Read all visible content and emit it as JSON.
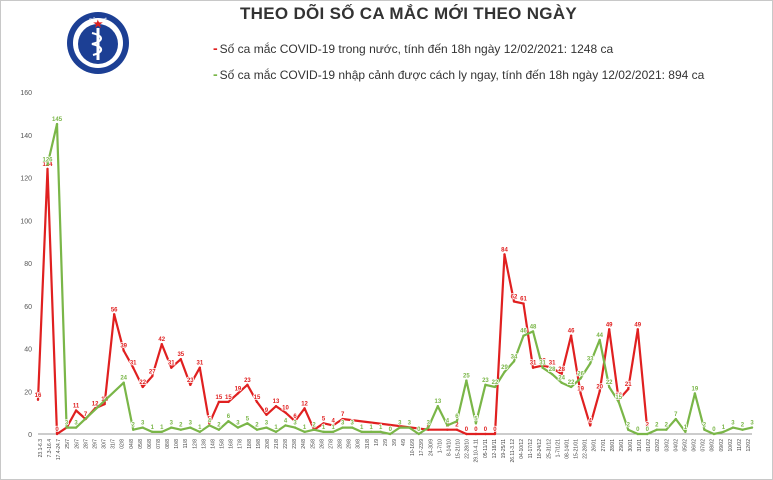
{
  "title": "THEO DÕI SỐ CA MẮC MỚI THEO NGÀY",
  "logo_text": "BỘ Y TẾ",
  "legend": [
    {
      "marker": "-",
      "text": "Số ca mắc COVID-19 trong nước, tính đến 18h ngày 12/02/2021: 1248 ca",
      "color": "#e02020"
    },
    {
      "marker": "-",
      "text": "Số ca mắc COVID-19 nhập cảnh được cách ly ngay, tính đến 18h ngày 12/02/2021: 894 ca",
      "color": "#7ab648"
    }
  ],
  "chart_data": {
    "type": "line",
    "title": "THEO DÕI SỐ CA MẮC MỚI THEO NGÀY",
    "xlabel": "",
    "ylabel": "",
    "ylim": [
      0,
      160
    ],
    "yticks": [
      0,
      20,
      40,
      60,
      80,
      100,
      120,
      140,
      160
    ],
    "grid": false,
    "legend_position": "top",
    "x_tick_labels": [
      "23.1-6.3",
      "7.3-16.4",
      "17.4-24.7",
      "25/7",
      "26/7",
      "28/7",
      "29/7",
      "30/7",
      "31/7",
      "02/8",
      "04/8",
      "05/8",
      "06/8",
      "07/8",
      "08/8",
      "10/8",
      "11/8",
      "12/8",
      "13/8",
      "14/8",
      "15/8",
      "16/8",
      "17/8",
      "18/8",
      "19/8",
      "20/8",
      "21/8",
      "22/8",
      "23/8",
      "24/8",
      "25/8",
      "26/8",
      "27/8",
      "28/8",
      "29/8",
      "30/8",
      "31/8",
      "1/9",
      "2/9",
      "3/9",
      "4/9",
      "10-16/9",
      "17-23/9",
      "24-30/9",
      "1-7/10",
      "8-14/10",
      "15-21/10",
      "22-28/10",
      "29.10-4.11",
      "05-11/11",
      "12-18/11",
      "19-25/11",
      "26.11-3.12",
      "04-10/12",
      "11-17/12",
      "18-24/12",
      "25-31/12",
      "1-7/1/21",
      "08-14/01",
      "15-21/01",
      "22-28/01",
      "26/01",
      "27/01",
      "28/01",
      "29/01",
      "30/01",
      "31/01",
      "01/02",
      "02/02",
      "03/02",
      "04/02",
      "05/02",
      "06/02",
      "07/02",
      "08/02",
      "09/02",
      "10/02",
      "11/02",
      "12/02"
    ],
    "series": [
      {
        "name": "Số ca mắc COVID-19 trong nước",
        "color": "#e02020",
        "points": [
          [
            0,
            16
          ],
          [
            4,
            124
          ],
          [
            8,
            0
          ],
          [
            12,
            3
          ],
          [
            16,
            11
          ],
          [
            20,
            7
          ],
          [
            24,
            12
          ],
          [
            28,
            14
          ],
          [
            32,
            56
          ],
          [
            36,
            39
          ],
          [
            40,
            31
          ],
          [
            44,
            22
          ],
          [
            48,
            27
          ],
          [
            52,
            42
          ],
          [
            56,
            31
          ],
          [
            60,
            35
          ],
          [
            64,
            23
          ],
          [
            68,
            31
          ],
          [
            72,
            5
          ],
          [
            76,
            15
          ],
          [
            80,
            15
          ],
          [
            84,
            19
          ],
          [
            88,
            23
          ],
          [
            92,
            15
          ],
          [
            96,
            9
          ],
          [
            100,
            13
          ],
          [
            104,
            10
          ],
          [
            108,
            6
          ],
          [
            112,
            12
          ],
          [
            116,
            2
          ],
          [
            120,
            5
          ],
          [
            124,
            4
          ],
          [
            128,
            7
          ],
          [
            164,
            2
          ],
          [
            172,
            2
          ],
          [
            176,
            2
          ],
          [
            180,
            0
          ],
          [
            184,
            0
          ],
          [
            188,
            0
          ],
          [
            192,
            0
          ],
          [
            196,
            84
          ],
          [
            200,
            62
          ],
          [
            204,
            61
          ],
          [
            208,
            31
          ],
          [
            212,
            32
          ],
          [
            216,
            31
          ],
          [
            220,
            28
          ],
          [
            224,
            46
          ],
          [
            228,
            19
          ],
          [
            232,
            4
          ],
          [
            236,
            20
          ],
          [
            240,
            49
          ],
          [
            244,
            16
          ],
          [
            248,
            21
          ],
          [
            252,
            49
          ],
          [
            256,
            2
          ]
        ]
      },
      {
        "name": "Số ca mắc COVID-19 nhập cảnh được cách ly ngay",
        "color": "#7ab648",
        "points": [
          [
            4,
            126
          ],
          [
            8,
            145
          ],
          [
            12,
            3
          ],
          [
            16,
            3
          ],
          [
            36,
            24
          ],
          [
            40,
            2
          ],
          [
            44,
            3
          ],
          [
            48,
            1
          ],
          [
            52,
            1
          ],
          [
            56,
            3
          ],
          [
            60,
            2
          ],
          [
            64,
            3
          ],
          [
            68,
            1
          ],
          [
            72,
            4
          ],
          [
            76,
            2
          ],
          [
            80,
            6
          ],
          [
            84,
            3
          ],
          [
            88,
            5
          ],
          [
            92,
            2
          ],
          [
            96,
            3
          ],
          [
            100,
            1
          ],
          [
            104,
            4
          ],
          [
            108,
            3
          ],
          [
            112,
            1
          ],
          [
            116,
            2
          ],
          [
            120,
            1
          ],
          [
            124,
            1
          ],
          [
            128,
            3
          ],
          [
            132,
            3
          ],
          [
            136,
            1
          ],
          [
            140,
            1
          ],
          [
            144,
            1
          ],
          [
            148,
            0
          ],
          [
            152,
            3
          ],
          [
            156,
            3
          ],
          [
            160,
            0
          ],
          [
            164,
            3
          ],
          [
            168,
            13
          ],
          [
            172,
            4
          ],
          [
            176,
            6
          ],
          [
            180,
            25
          ],
          [
            184,
            5
          ],
          [
            188,
            23
          ],
          [
            192,
            22
          ],
          [
            196,
            29
          ],
          [
            200,
            34
          ],
          [
            204,
            46
          ],
          [
            208,
            48
          ],
          [
            212,
            31
          ],
          [
            216,
            28
          ],
          [
            220,
            24
          ],
          [
            224,
            22
          ],
          [
            228,
            26
          ],
          [
            232,
            33
          ],
          [
            236,
            44
          ],
          [
            240,
            22
          ],
          [
            244,
            15
          ],
          [
            248,
            2
          ],
          [
            252,
            0
          ],
          [
            256,
            0
          ],
          [
            260,
            2
          ],
          [
            264,
            2
          ],
          [
            268,
            7
          ],
          [
            272,
            1
          ],
          [
            276,
            19
          ],
          [
            280,
            2
          ],
          [
            284,
            0
          ],
          [
            288,
            1
          ],
          [
            292,
            3
          ],
          [
            296,
            2
          ],
          [
            300,
            3
          ]
        ]
      }
    ]
  }
}
